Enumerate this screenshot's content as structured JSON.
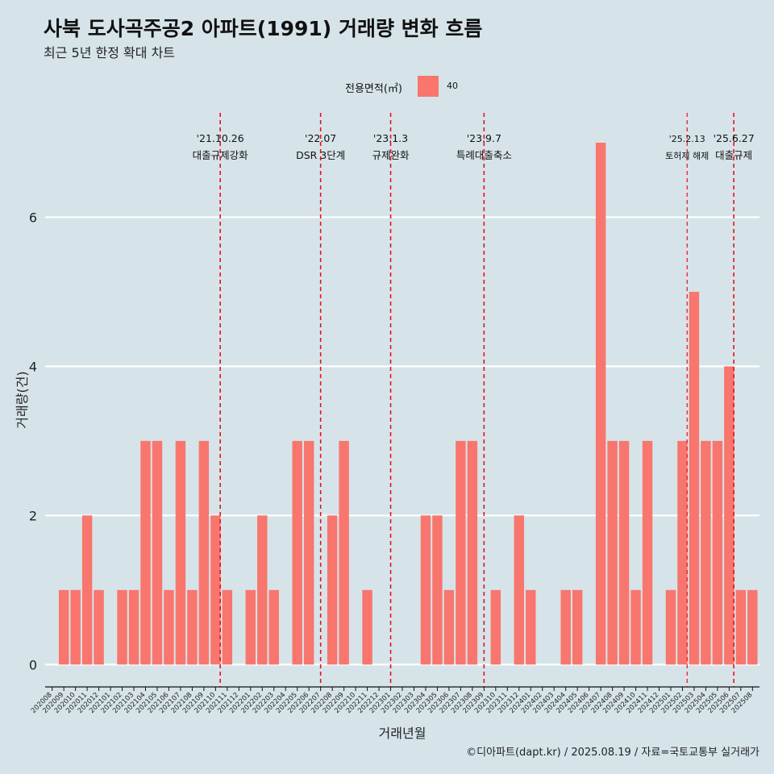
{
  "title": "사북 도사곡주공2 아파트(1991) 거래량 변화 흐름",
  "subtitle": "최근 5년 한정 확대 차트",
  "caption": "©디아파트(dapt.kr) / 2025.08.19 / 자료=국토교통부 실거래가",
  "legend": {
    "title": "전용면적(㎡)",
    "label": "40",
    "color": "#f8766d"
  },
  "colors": {
    "bar": "#f8766d",
    "event_line": "#e8101a",
    "grid": "#ffffff",
    "background": "#d6e4ea"
  },
  "chart_data": {
    "type": "bar",
    "xlabel": "거래년월",
    "ylabel": "거래량(건)",
    "ylim": [
      -0.3,
      7.4
    ],
    "yticks": [
      0,
      2,
      4,
      6
    ],
    "grid": true,
    "legend_position": "top",
    "categories": [
      "202008",
      "202009",
      "202010",
      "202011",
      "202012",
      "202101",
      "202102",
      "202103",
      "202104",
      "202105",
      "202106",
      "202107",
      "202108",
      "202109",
      "202110",
      "202111",
      "202112",
      "202201",
      "202202",
      "202203",
      "202204",
      "202205",
      "202206",
      "202207",
      "202208",
      "202209",
      "202210",
      "202211",
      "202212",
      "202301",
      "202302",
      "202303",
      "202304",
      "202305",
      "202306",
      "202307",
      "202308",
      "202309",
      "202310",
      "202311",
      "202312",
      "202401",
      "202402",
      "202403",
      "202404",
      "202405",
      "202406",
      "202407",
      "202408",
      "202409",
      "202410",
      "202411",
      "202412",
      "202501",
      "202502",
      "202503",
      "202504",
      "202505",
      "202506",
      "202507",
      "202508"
    ],
    "series": [
      {
        "name": "40",
        "values": [
          0,
          1,
          1,
          2,
          1,
          0,
          1,
          1,
          3,
          3,
          1,
          3,
          1,
          3,
          2,
          1,
          0,
          1,
          2,
          1,
          0,
          3,
          3,
          0,
          2,
          3,
          0,
          1,
          0,
          0,
          0,
          0,
          2,
          2,
          1,
          3,
          3,
          0,
          1,
          0,
          2,
          1,
          0,
          0,
          1,
          1,
          0,
          7,
          3,
          3,
          1,
          3,
          0,
          1,
          3,
          5,
          3,
          3,
          4,
          1,
          1
        ]
      }
    ],
    "events": [
      {
        "date": "'21.10.26",
        "label": "대출규제강화",
        "x": "202110",
        "offset": 0.4
      },
      {
        "date": "'22.07",
        "label": "DSR 3단계",
        "x": "202207",
        "offset": 0.0
      },
      {
        "date": "'23.1.3",
        "label": "규제완화",
        "x": "202301",
        "offset": 0.0
      },
      {
        "date": "'23.9.7",
        "label": "특례대출축소",
        "x": "202309",
        "offset": 0.0
      },
      {
        "date": "'25.2.13",
        "label": "토허제 해제",
        "x": "202502",
        "offset": 0.4,
        "small": true
      },
      {
        "date": "'25.6.27",
        "label": "대출규제",
        "x": "202506",
        "offset": 0.4
      }
    ]
  }
}
